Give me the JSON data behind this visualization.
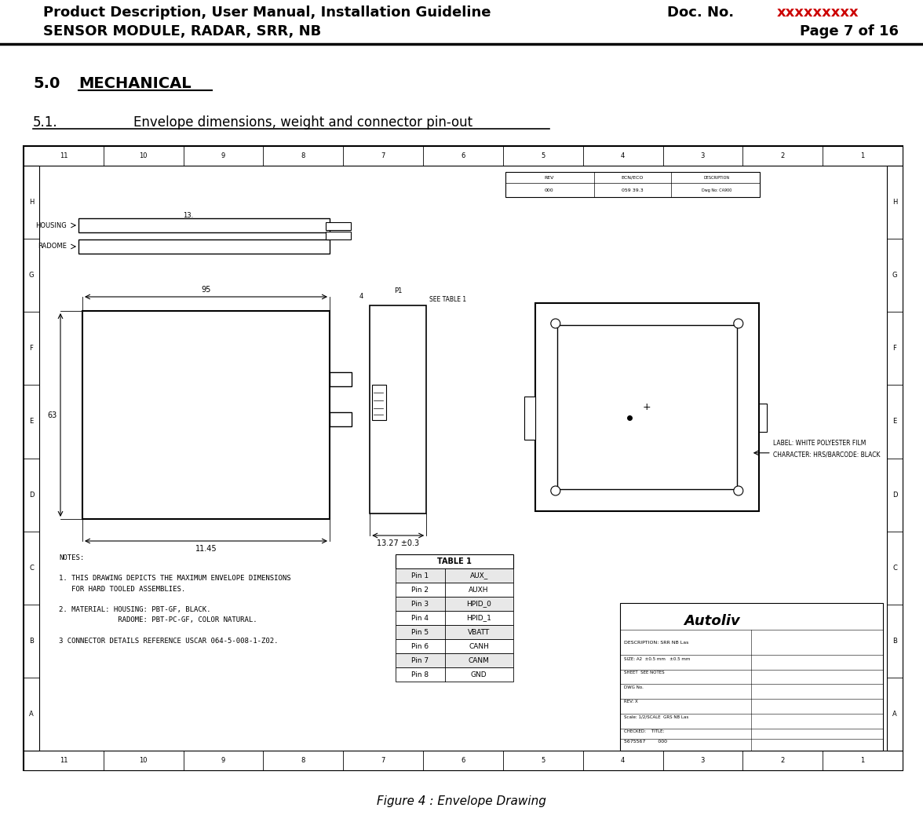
{
  "header_left_line1": "Product Description, User Manual, Installation Guideline",
  "header_left_line2": "SENSOR MODULE, RADAR, SRR, NB",
  "header_right_line1_black": "Doc. No.  ",
  "header_right_line1_red": "xxxxxxxxx",
  "header_right_line2": "Page 7 of 16",
  "figure_caption": "Figure 4 : Envelope Drawing",
  "bg_color": "#ffffff",
  "red_color": "#cc0000",
  "drawing_area": {
    "notes_text": "NOTES:\n\n1. THIS DRAWING DEPICTS THE MAXIMUM ENVELOPE DIMENSIONS\n   FOR HARD TOOLED ASSEMBLIES.\n\n2. MATERIAL: HOUSING: PBT-GF, BLACK.\n              RADOME: PBT-PC-GF, COLOR NATURAL.\n\n3 CONNECTOR DETAILS REFERENCE USCAR 064-5-008-1-Z02.",
    "table_title": "TABLE 1",
    "table_rows": [
      [
        "Pin 1",
        "AUX_"
      ],
      [
        "Pin 2",
        "AUXH"
      ],
      [
        "Pin 3",
        "HPID_0"
      ],
      [
        "Pin 4",
        "HPID_1"
      ],
      [
        "Pin 5",
        "VBATT"
      ],
      [
        "Pin 6",
        "CANH"
      ],
      [
        "Pin 7",
        "CANM"
      ],
      [
        "Pin 8",
        "GND"
      ]
    ]
  }
}
